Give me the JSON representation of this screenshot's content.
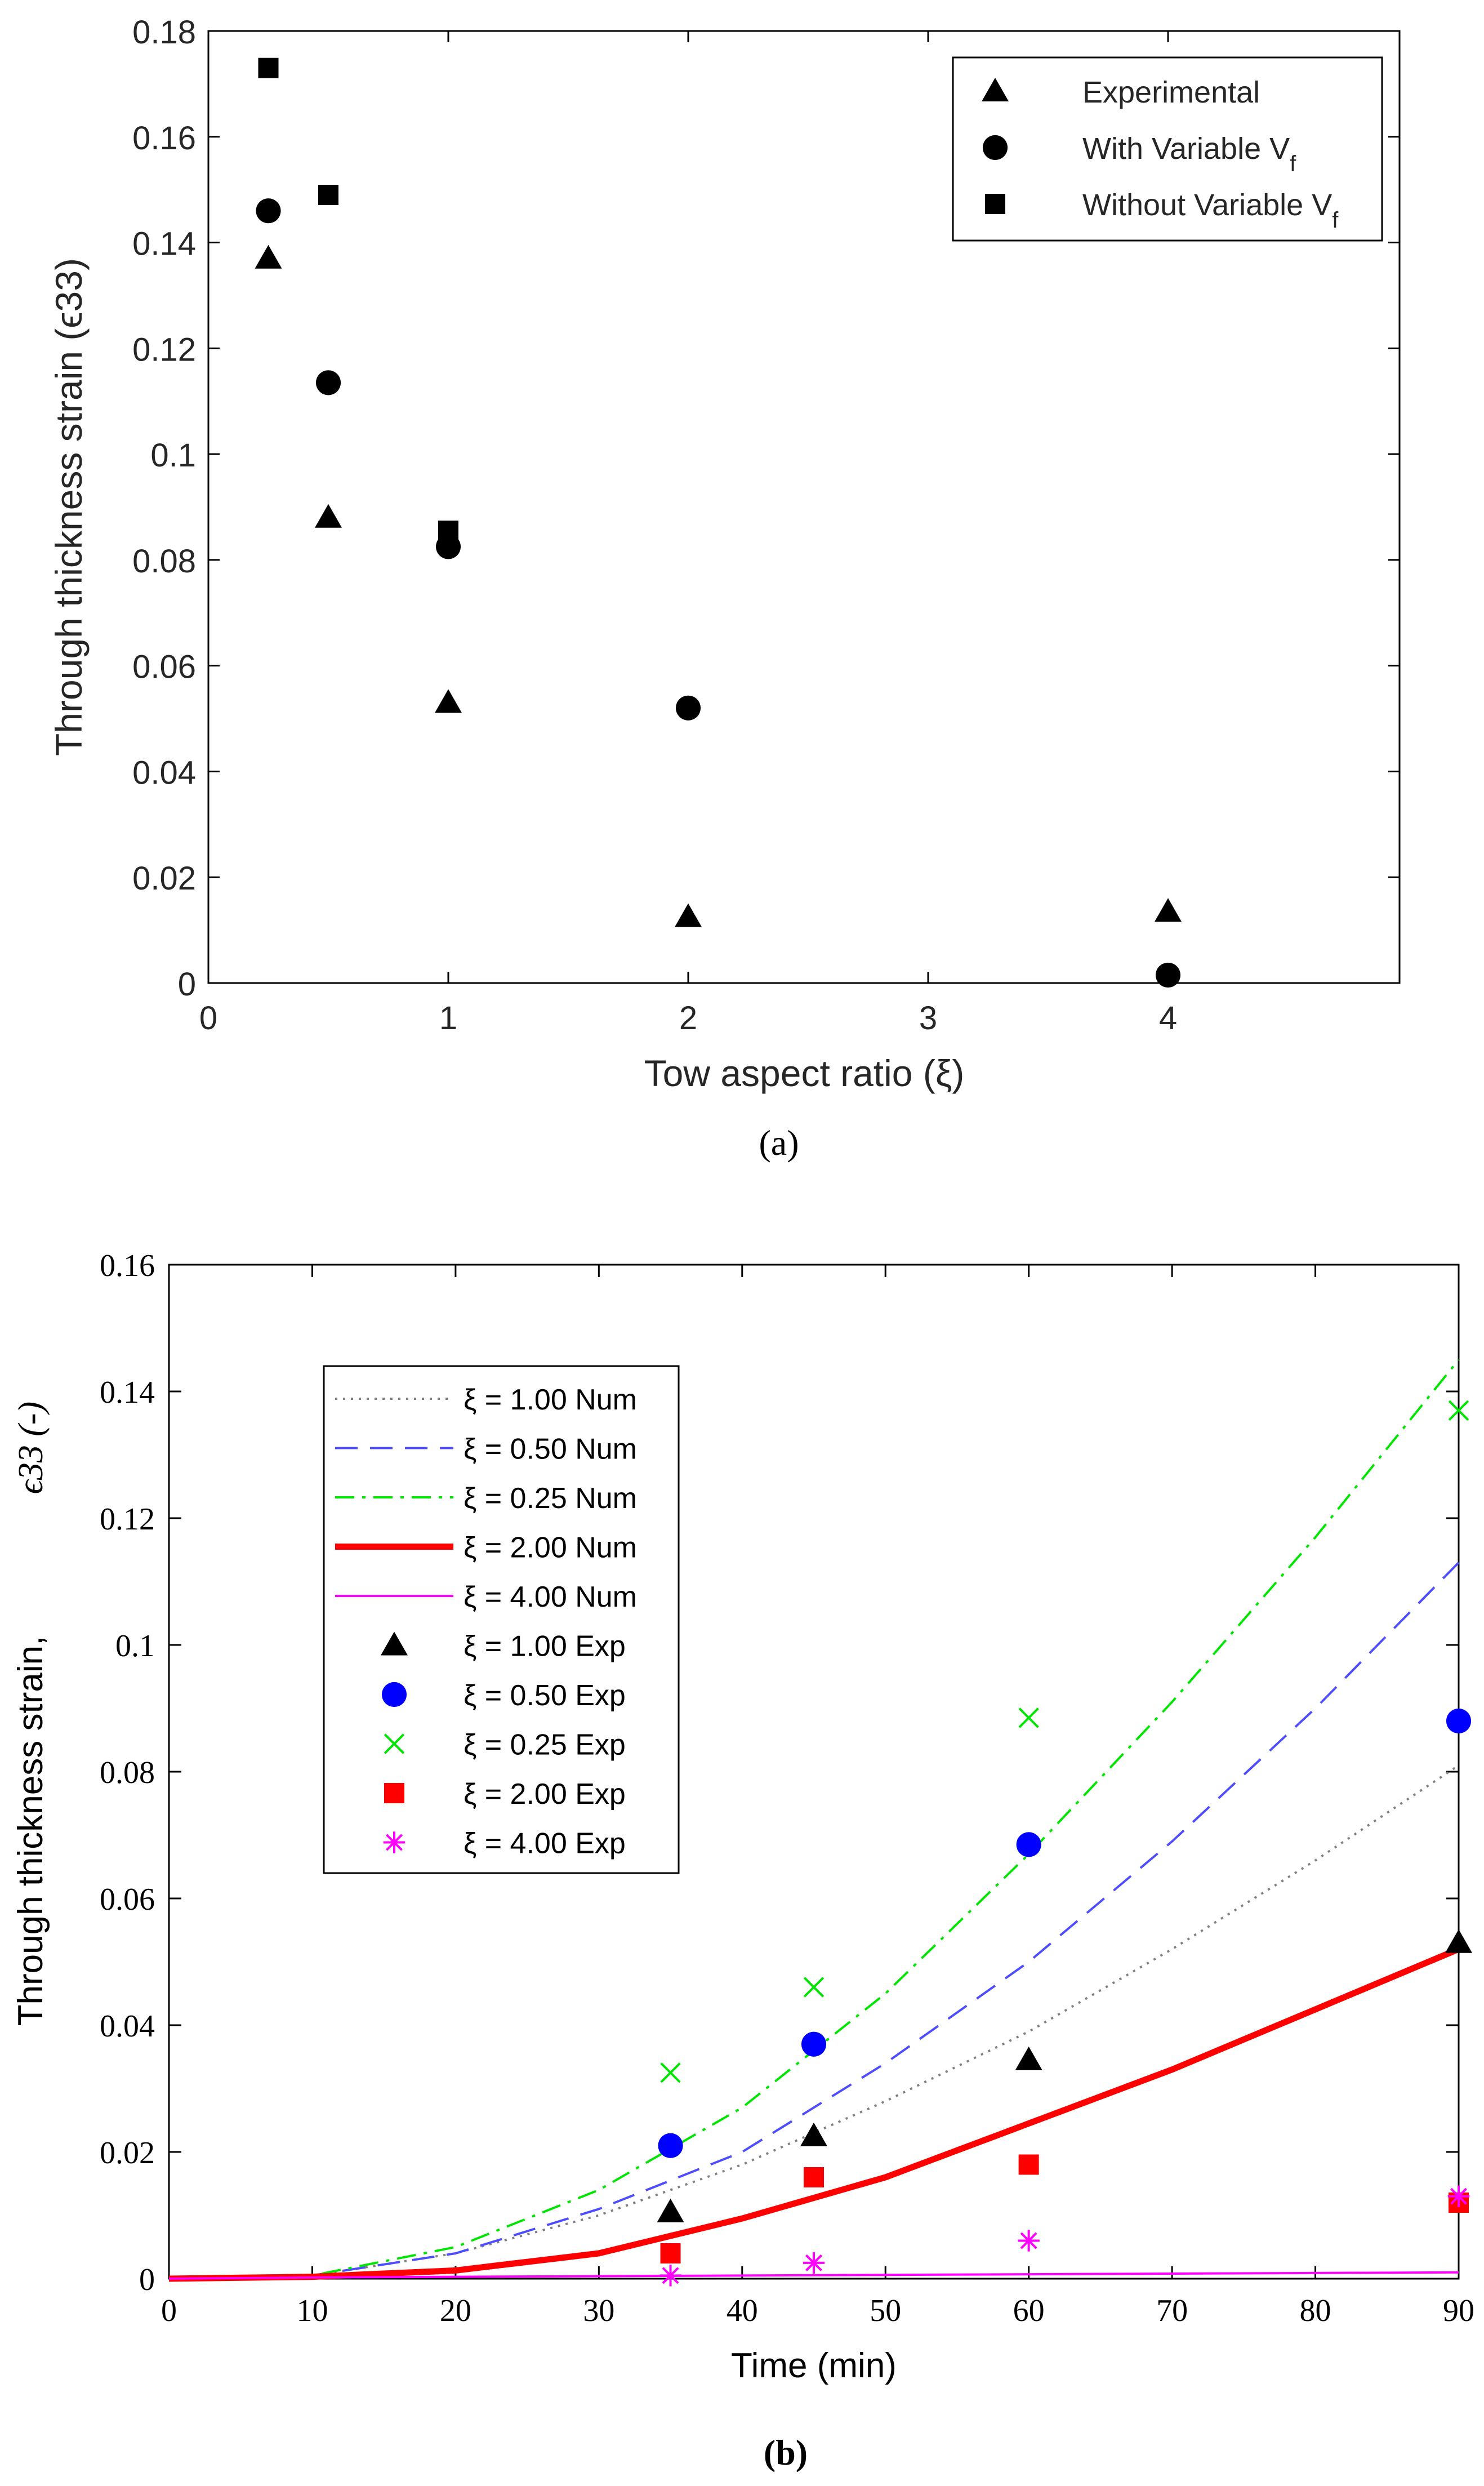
{
  "chart_data": [
    {
      "id": "a",
      "type": "scatter",
      "caption": "(a)",
      "xlabel": "Tow aspect ratio (ξ)",
      "ylabel": "Through thickness strain (ϵ33)",
      "x_ticks": [
        "0",
        "1",
        "2",
        "3",
        "4"
      ],
      "y_ticks": [
        "0",
        "0.02",
        "0.04",
        "0.06",
        "0.08",
        "0.1",
        "0.12",
        "0.14",
        "0.16",
        "0.18"
      ],
      "ylim": [
        0,
        0.18
      ],
      "categories": [
        0.25,
        0.5,
        1,
        2,
        4
      ],
      "series": [
        {
          "name": "Experimental",
          "marker": "triangle",
          "color": "#000000",
          "values": [
            0.137,
            0.088,
            0.053,
            0.0125,
            0.0135
          ]
        },
        {
          "name": "With Variable Vf",
          "marker": "circle",
          "color": "#000000",
          "values": [
            0.146,
            0.1135,
            0.0825,
            0.052,
            0.0015
          ]
        },
        {
          "name": "Without Variable Vf",
          "marker": "square",
          "color": "#000000",
          "values": [
            0.173,
            0.149,
            0.0855,
            null,
            null
          ]
        }
      ],
      "legend": {
        "position": "top-right",
        "labels": [
          {
            "main": "Experimental",
            "sub": ""
          },
          {
            "main": "With Variable V",
            "sub": "f"
          },
          {
            "main": "Without Variable V",
            "sub": "f"
          }
        ]
      }
    },
    {
      "id": "b",
      "type": "line",
      "caption": "(b)",
      "xlabel": "Time (min)",
      "ylabel": "Through thickness strain,",
      "ylabel_symbol": "ϵ33 (-)",
      "xlim": [
        0,
        90
      ],
      "ylim": [
        0,
        0.16
      ],
      "x_ticks": [
        "0",
        "10",
        "20",
        "30",
        "40",
        "50",
        "60",
        "70",
        "80",
        "90"
      ],
      "y_ticks": [
        "0",
        "0.02",
        "0.04",
        "0.06",
        "0.08",
        "0.1",
        "0.12",
        "0.14",
        "0.16"
      ],
      "x": [
        0,
        10,
        20,
        30,
        40,
        50,
        60,
        70,
        80,
        90
      ],
      "series": [
        {
          "name": "ξ = 1.00 Num",
          "style": "dotted",
          "color": "#808080",
          "values": [
            0,
            0.0005,
            0.004,
            0.01,
            0.018,
            0.028,
            0.039,
            0.052,
            0.066,
            0.081
          ]
        },
        {
          "name": "ξ = 0.50 Num",
          "style": "dashed",
          "color": "#4d4dff",
          "values": [
            0,
            0.0005,
            0.004,
            0.011,
            0.02,
            0.034,
            0.05,
            0.069,
            0.09,
            0.113
          ]
        },
        {
          "name": "ξ = 0.25 Num",
          "style": "dashdot",
          "color": "#00e600",
          "values": [
            0,
            0.0005,
            0.005,
            0.014,
            0.027,
            0.045,
            0.067,
            0.091,
            0.117,
            0.145
          ]
        },
        {
          "name": "ξ = 2.00 Num",
          "style": "thick-solid",
          "color": "#ff0000",
          "values": [
            0,
            0.0003,
            0.0013,
            0.004,
            0.0095,
            0.016,
            0.0245,
            0.033,
            0.0425,
            0.052
          ]
        },
        {
          "name": "ξ = 4.00 Num",
          "style": "solid",
          "color": "#ff00ff",
          "values": [
            0,
            0.0002,
            0.0003,
            0.0004,
            0.0005,
            0.0006,
            0.0007,
            0.0008,
            0.0009,
            0.001
          ]
        }
      ],
      "experimental": [
        {
          "name": "ξ = 1.00 Exp",
          "marker": "triangle",
          "color": "#000000",
          "x": [
            35,
            45,
            60,
            90
          ],
          "values": [
            0.0105,
            0.0225,
            0.0345,
            0.053
          ]
        },
        {
          "name": "ξ = 0.50 Exp",
          "marker": "circle",
          "color": "#0000ff",
          "x": [
            35,
            45,
            60,
            90
          ],
          "values": [
            0.021,
            0.037,
            0.0685,
            0.088
          ]
        },
        {
          "name": "ξ = 0.25 Exp",
          "marker": "x",
          "color": "#00e600",
          "x": [
            35,
            45,
            60,
            90
          ],
          "values": [
            0.0325,
            0.046,
            0.0885,
            0.137
          ]
        },
        {
          "name": "ξ = 2.00 Exp",
          "marker": "square",
          "color": "#ff0000",
          "x": [
            35,
            45,
            60,
            90
          ],
          "values": [
            0.004,
            0.016,
            0.018,
            0.012
          ]
        },
        {
          "name": "ξ = 4.00 Exp",
          "marker": "asterisk",
          "color": "#ff00ff",
          "x": [
            35,
            45,
            60,
            90
          ],
          "values": [
            0.0005,
            0.0025,
            0.006,
            0.013
          ]
        }
      ],
      "legend": {
        "position": "top-left"
      }
    }
  ]
}
